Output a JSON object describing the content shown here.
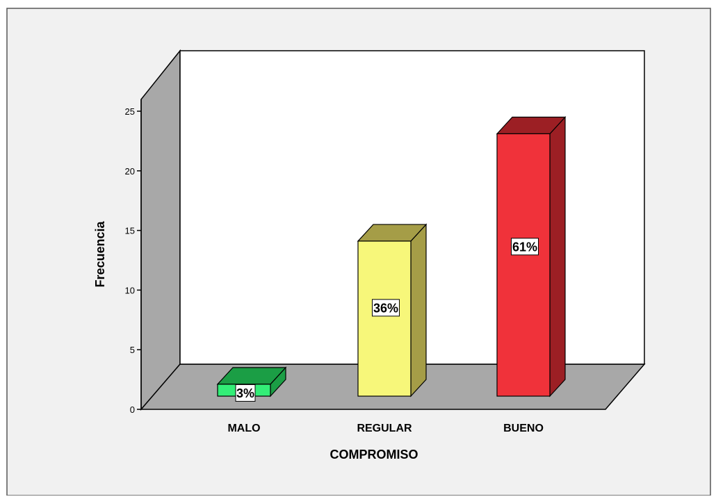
{
  "chart_data": {
    "type": "bar",
    "style": "3d",
    "categories": [
      "MALO",
      "REGULAR",
      "BUENO"
    ],
    "values": [
      1,
      13,
      22
    ],
    "data_labels": [
      "3%",
      "36%",
      "61%"
    ],
    "colors": {
      "bar_fronts": [
        "#33ee77",
        "#f7f77a",
        "#f0323a"
      ],
      "bar_sides": [
        "#1b9e45",
        "#a59d47",
        "#9c1f24"
      ],
      "plot_background": "#f1f1f1",
      "wall": "#ffffff",
      "side_wall": "#a8a8a8",
      "floor": "#a8a8a8"
    },
    "title": "",
    "xlabel": "COMPROMISO",
    "ylabel": "Frecuencia",
    "ylim": [
      0,
      25
    ],
    "yticks": [
      0,
      5,
      10,
      15,
      20,
      25
    ],
    "grid": false,
    "legend": "none"
  }
}
